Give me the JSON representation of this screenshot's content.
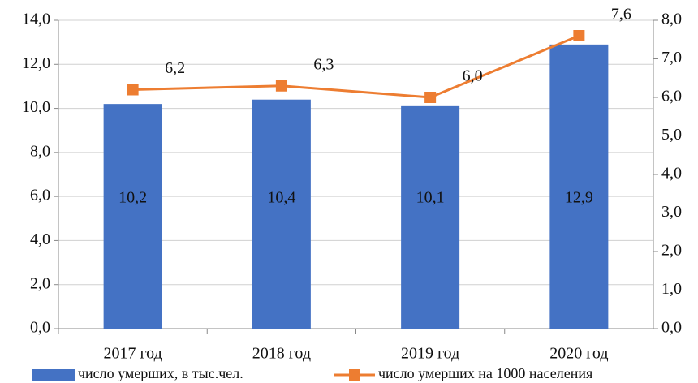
{
  "chart_data": {
    "type": "bar",
    "categories": [
      "2017 год",
      "2018 год",
      "2019 год",
      "2020 год"
    ],
    "series": [
      {
        "name": "число умерших,  в тыс.чел.",
        "type": "bar",
        "color": "#4472c4",
        "axis": "y",
        "values": [
          10.2,
          10.4,
          10.1,
          12.9
        ],
        "value_labels": [
          "10,2",
          "10,4",
          "10,1",
          "12,9"
        ]
      },
      {
        "name": "число умерших на 1000 населения",
        "type": "line",
        "color": "#ed7d31",
        "axis": "y2",
        "values": [
          6.2,
          6.3,
          6.0,
          7.6
        ],
        "value_labels": [
          "6,2",
          "6,3",
          "6,0",
          "7,6"
        ]
      }
    ],
    "ylim": [
      0,
      14
    ],
    "yticks": [
      {
        "value": 0,
        "label": "0,0"
      },
      {
        "value": 2,
        "label": "2,0"
      },
      {
        "value": 4,
        "label": "4,0"
      },
      {
        "value": 6,
        "label": "6,0"
      },
      {
        "value": 8,
        "label": "8,0"
      },
      {
        "value": 10,
        "label": "10,0"
      },
      {
        "value": 12,
        "label": "12,0"
      },
      {
        "value": 14,
        "label": "14,0"
      }
    ],
    "y2lim": [
      0,
      8
    ],
    "y2ticks": [
      {
        "value": 0,
        "label": "0,0"
      },
      {
        "value": 1,
        "label": "1,0"
      },
      {
        "value": 2,
        "label": "2,0"
      },
      {
        "value": 3,
        "label": "3,0"
      },
      {
        "value": 4,
        "label": "4,0"
      },
      {
        "value": 5,
        "label": "5,0"
      },
      {
        "value": 6,
        "label": "6,0"
      },
      {
        "value": 7,
        "label": "7,0"
      },
      {
        "value": 8,
        "label": "8,0"
      }
    ],
    "grid": true
  }
}
